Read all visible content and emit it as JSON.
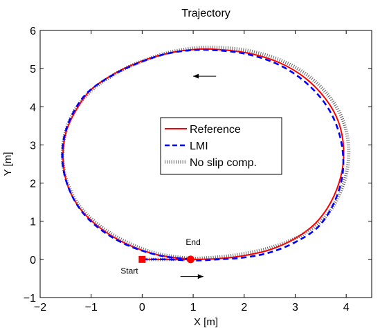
{
  "chart_data": {
    "type": "line",
    "title": "Trajectory",
    "xlabel": "X [m]",
    "ylabel": "Y [m]",
    "xlim": [
      -2,
      4.5
    ],
    "ylim": [
      -1,
      6
    ],
    "xticks": [
      -2,
      -1,
      0,
      1,
      2,
      3,
      4
    ],
    "yticks": [
      -1,
      0,
      1,
      2,
      3,
      4,
      5,
      6
    ],
    "xtick_labels": [
      "−2",
      "−1",
      "0",
      "1",
      "2",
      "3",
      "4"
    ],
    "ytick_labels": [
      "−1",
      "0",
      "1",
      "2",
      "3",
      "4",
      "5",
      "6"
    ],
    "grid": false,
    "legend_position": "center",
    "series": [
      {
        "name": "Reference",
        "color": "#ff0000",
        "style": "solid",
        "x": [
          0,
          0.5,
          1,
          1.5,
          2,
          2.5,
          3,
          3.4,
          3.7,
          3.9,
          3.95,
          3.85,
          3.6,
          3.2,
          2.7,
          2.1,
          1.5,
          1,
          0.5,
          0,
          -0.5,
          -1,
          -1.3,
          -1.5,
          -1.55,
          -1.45,
          -1.2,
          -0.8,
          -0.3,
          0.3,
          0.95
        ],
        "y": [
          0,
          0,
          0,
          0.02,
          0.1,
          0.25,
          0.55,
          0.95,
          1.5,
          2.2,
          2.9,
          3.6,
          4.2,
          4.75,
          5.15,
          5.4,
          5.5,
          5.5,
          5.4,
          5.2,
          4.9,
          4.45,
          3.9,
          3.3,
          2.6,
          1.9,
          1.3,
          0.8,
          0.4,
          0.12,
          0
        ]
      },
      {
        "name": "LMI",
        "color": "#0000ff",
        "style": "dashed",
        "x": [
          0,
          0.5,
          1,
          1.5,
          2,
          2.5,
          3,
          3.45,
          3.75,
          3.92,
          3.93,
          3.8,
          3.55,
          3.15,
          2.65,
          2.05,
          1.45,
          0.95,
          0.45,
          -0.05,
          -0.55,
          -1.05,
          -1.35,
          -1.53,
          -1.56,
          -1.42,
          -1.15,
          -0.75,
          -0.25,
          0.35,
          0.95
        ],
        "y": [
          0,
          0,
          -0.03,
          0.0,
          0.05,
          0.18,
          0.45,
          0.85,
          1.45,
          2.15,
          2.85,
          3.55,
          4.15,
          4.7,
          5.12,
          5.38,
          5.48,
          5.48,
          5.38,
          5.16,
          4.85,
          4.4,
          3.85,
          3.2,
          2.5,
          1.8,
          1.2,
          0.72,
          0.35,
          0.1,
          0
        ]
      },
      {
        "name": "No slip comp.",
        "color": "#000000",
        "style": "dotted",
        "x": [
          0,
          0.5,
          1,
          1.5,
          2,
          2.55,
          3.1,
          3.55,
          3.85,
          4.02,
          4.04,
          3.92,
          3.65,
          3.25,
          2.75,
          2.15,
          1.55,
          1.05,
          0.55,
          0.05,
          -0.45,
          -0.95,
          -1.3,
          -1.5,
          -1.56,
          -1.45,
          -1.2,
          -0.8,
          -0.3,
          0.3,
          0.95
        ],
        "y": [
          0,
          0,
          0.02,
          0.06,
          0.15,
          0.32,
          0.62,
          1.05,
          1.65,
          2.35,
          3.05,
          3.7,
          4.3,
          4.82,
          5.2,
          5.45,
          5.55,
          5.54,
          5.43,
          5.22,
          4.92,
          4.48,
          3.95,
          3.35,
          2.65,
          1.95,
          1.35,
          0.85,
          0.45,
          0.15,
          0.02
        ]
      }
    ],
    "markers": [
      {
        "name": "start-marker",
        "shape": "square",
        "color": "#ff0000",
        "x": 0,
        "y": 0
      },
      {
        "name": "end-marker",
        "shape": "circle",
        "color": "#ff0000",
        "x": 0.95,
        "y": 0
      }
    ],
    "annotations": [
      {
        "name": "start-label",
        "text": "Start",
        "x": -0.25,
        "y": -0.37
      },
      {
        "name": "end-label",
        "text": "End",
        "x": 1.0,
        "y": 0.38
      }
    ],
    "arrows": [
      {
        "name": "arrow-top",
        "x_from": 1.45,
        "x_to": 1.0,
        "y": 4.8
      },
      {
        "name": "arrow-bottom",
        "x_from": 0.75,
        "x_to": 1.2,
        "y": -0.45
      }
    ]
  }
}
